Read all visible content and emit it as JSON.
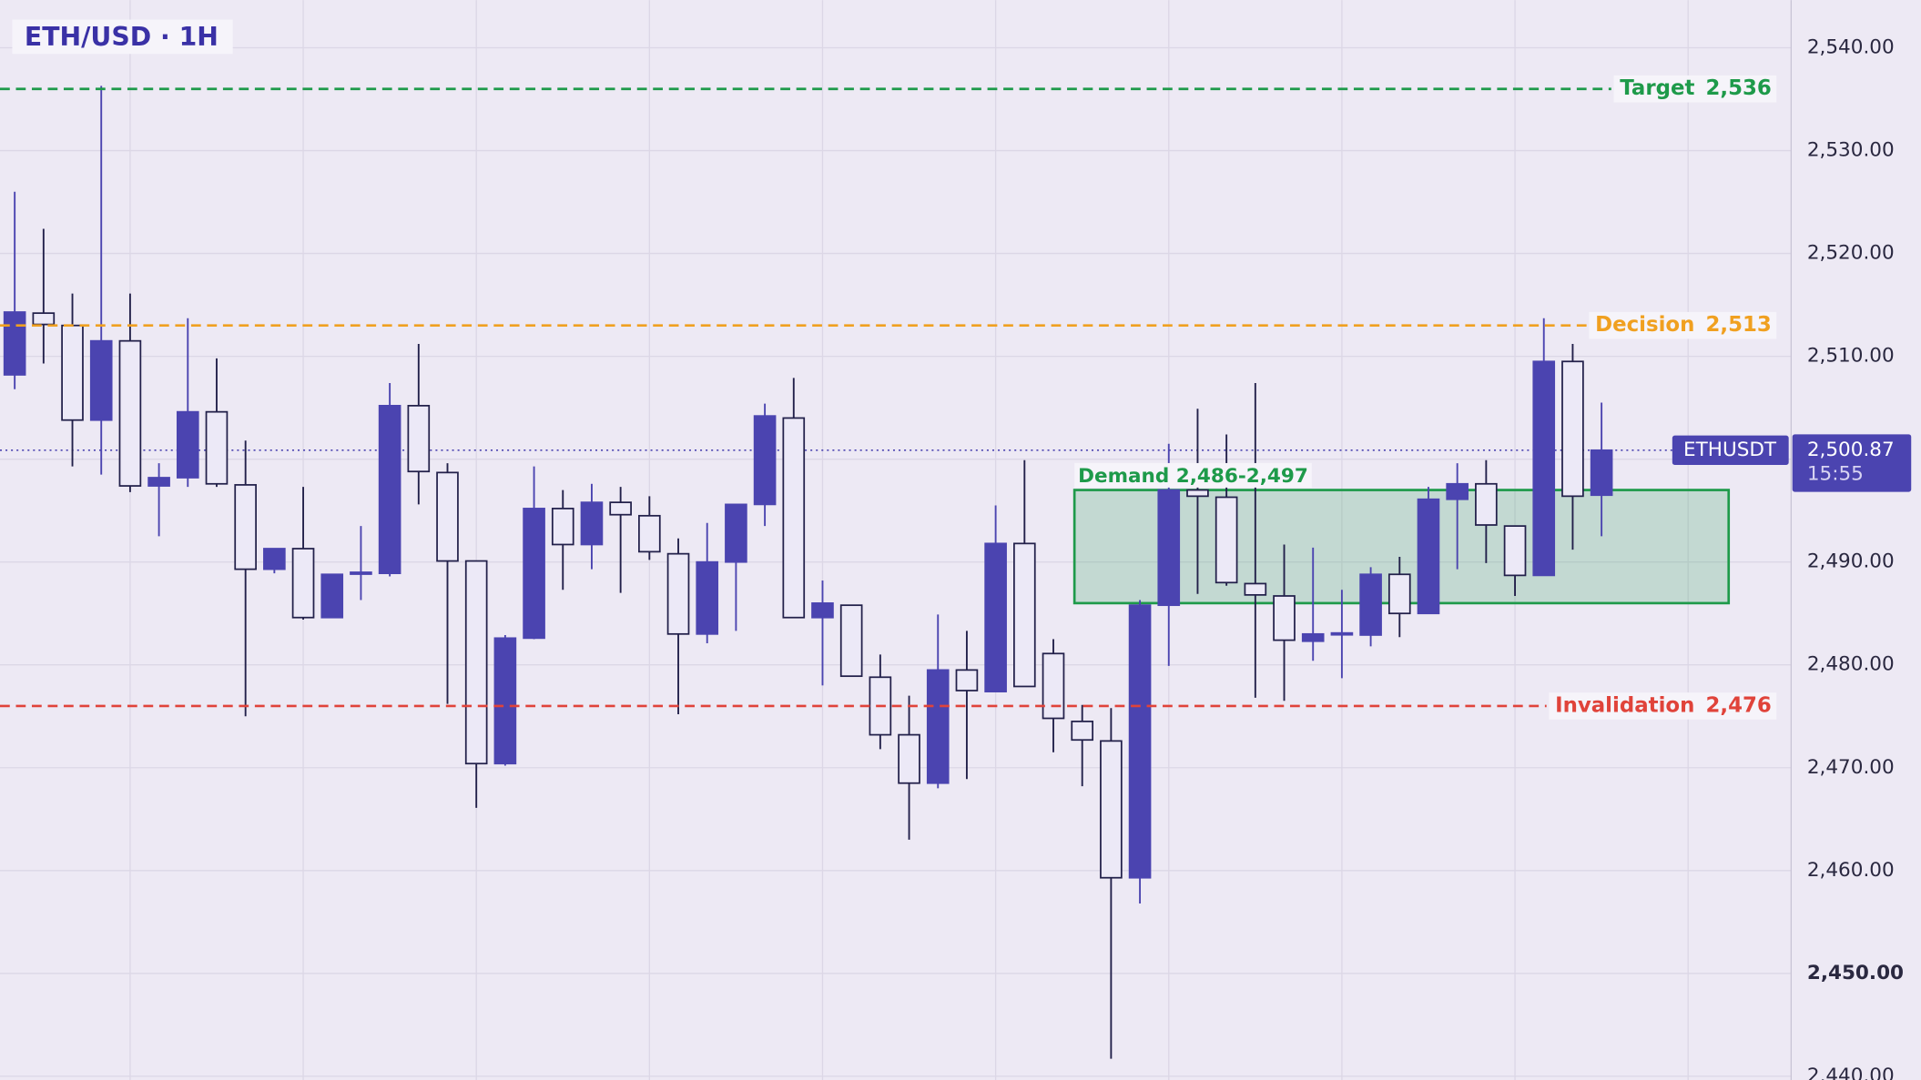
{
  "chart_data": {
    "type": "candlestick",
    "title": "ETH/USD · 1H",
    "open": [
      2508.2,
      2514.2,
      2513.0,
      2503.8,
      2511.5,
      2497.4,
      2498.2,
      2504.6,
      2497.5,
      2489.3,
      2491.3,
      2484.6,
      2489.0,
      2488.9,
      2505.2,
      2498.7,
      2490.1,
      2470.4,
      2482.6,
      2495.2,
      2491.7,
      2495.8,
      2494.5,
      2490.8,
      2483.0,
      2490.0,
      2495.6,
      2504.0,
      2484.6,
      2485.8,
      2478.8,
      2473.2,
      2468.5,
      2479.5,
      2477.4,
      2491.8,
      2481.1,
      2474.5,
      2472.6,
      2459.3,
      2485.8,
      2497.0,
      2496.3,
      2487.9,
      2486.7,
      2482.3,
      2483.1,
      2482.9,
      2488.8,
      2485.0,
      2496.1,
      2497.6,
      2493.5,
      2488.7,
      2509.5,
      2496.5
    ],
    "high": [
      2526.0,
      2522.4,
      2516.1,
      2536.3,
      2516.1,
      2499.6,
      2513.7,
      2509.8,
      2501.8,
      2491.3,
      2497.3,
      2488.8,
      2493.5,
      2507.4,
      2511.2,
      2499.6,
      2490.1,
      2482.9,
      2499.3,
      2497.0,
      2497.6,
      2497.3,
      2496.4,
      2492.3,
      2493.8,
      2495.6,
      2505.4,
      2507.9,
      2488.2,
      2485.8,
      2481.0,
      2477.0,
      2484.9,
      2483.3,
      2495.5,
      2499.9,
      2482.5,
      2476.1,
      2475.8,
      2486.3,
      2501.5,
      2504.9,
      2502.4,
      2507.4,
      2491.7,
      2491.4,
      2487.3,
      2489.5,
      2490.5,
      2497.3,
      2499.6,
      2499.9,
      2493.5,
      2513.7,
      2511.2,
      2505.5
    ],
    "low": [
      2506.8,
      2509.3,
      2499.3,
      2498.5,
      2496.8,
      2492.5,
      2497.3,
      2497.3,
      2475.0,
      2488.9,
      2484.4,
      2484.6,
      2486.3,
      2488.6,
      2495.6,
      2476.2,
      2466.1,
      2470.2,
      2482.5,
      2487.3,
      2489.3,
      2487.0,
      2490.2,
      2475.2,
      2482.1,
      2483.3,
      2493.5,
      2484.6,
      2478.0,
      2478.9,
      2471.8,
      2463.0,
      2468.0,
      2468.9,
      2477.4,
      2477.9,
      2471.5,
      2468.2,
      2441.7,
      2456.8,
      2479.9,
      2486.9,
      2487.7,
      2476.8,
      2476.5,
      2480.4,
      2478.7,
      2481.8,
      2482.7,
      2485.0,
      2489.3,
      2489.9,
      2486.7,
      2488.7,
      2491.2,
      2492.5
    ],
    "close": [
      2514.3,
      2513.1,
      2503.8,
      2511.5,
      2497.4,
      2498.2,
      2504.6,
      2497.6,
      2489.3,
      2491.3,
      2484.6,
      2488.8,
      2489.0,
      2505.2,
      2498.8,
      2490.1,
      2470.4,
      2482.6,
      2495.2,
      2491.7,
      2495.8,
      2494.6,
      2491.0,
      2483.0,
      2490.0,
      2495.6,
      2504.2,
      2484.6,
      2486.0,
      2478.9,
      2473.2,
      2468.5,
      2479.5,
      2477.5,
      2491.8,
      2477.9,
      2474.8,
      2472.7,
      2459.3,
      2485.8,
      2497.0,
      2496.4,
      2488.0,
      2486.8,
      2482.4,
      2483.0,
      2483.1,
      2488.8,
      2485.0,
      2496.1,
      2497.6,
      2493.6,
      2488.7,
      2509.5,
      2496.4,
      2500.87
    ],
    "up_color": "#4b44b0",
    "down_color": "#ece9f7",
    "outline_color": "#22204a",
    "ylim": [
      2439.64,
      2544.64
    ],
    "yticks": [
      {
        "value": 2440,
        "label": "2,440.00"
      },
      {
        "value": 2450,
        "label": "2,450.00"
      },
      {
        "value": 2460,
        "label": "2,460.00"
      },
      {
        "value": 2470,
        "label": "2,470.00"
      },
      {
        "value": 2480,
        "label": "2,480.00"
      },
      {
        "value": 2490,
        "label": "2,490.00"
      },
      {
        "value": 2500,
        "label": "2,500.00"
      },
      {
        "value": 2510,
        "label": "2,510.00"
      },
      {
        "value": 2520,
        "label": "2,520.00"
      },
      {
        "value": 2530,
        "label": "2,530.00"
      },
      {
        "value": 2540,
        "label": "2,540.00"
      }
    ],
    "grid": true,
    "levels": [
      {
        "name": "Target",
        "value": 2536,
        "label": "2,536",
        "color": "#1e9a4a"
      },
      {
        "name": "Decision",
        "value": 2513,
        "label": "2,513",
        "color": "#f0a020"
      },
      {
        "name": "Invalidation",
        "value": 2476,
        "label": "2,476",
        "color": "#e0433a"
      }
    ],
    "zone": {
      "label": "Demand 2,486-2,497",
      "low": 2486,
      "high": 2497,
      "color": "#1e9a4a"
    },
    "last": {
      "symbol": "ETHUSDT",
      "value": 2500.87,
      "label": "2,500.87",
      "time": "15:55",
      "color": "#4b44b0"
    }
  }
}
